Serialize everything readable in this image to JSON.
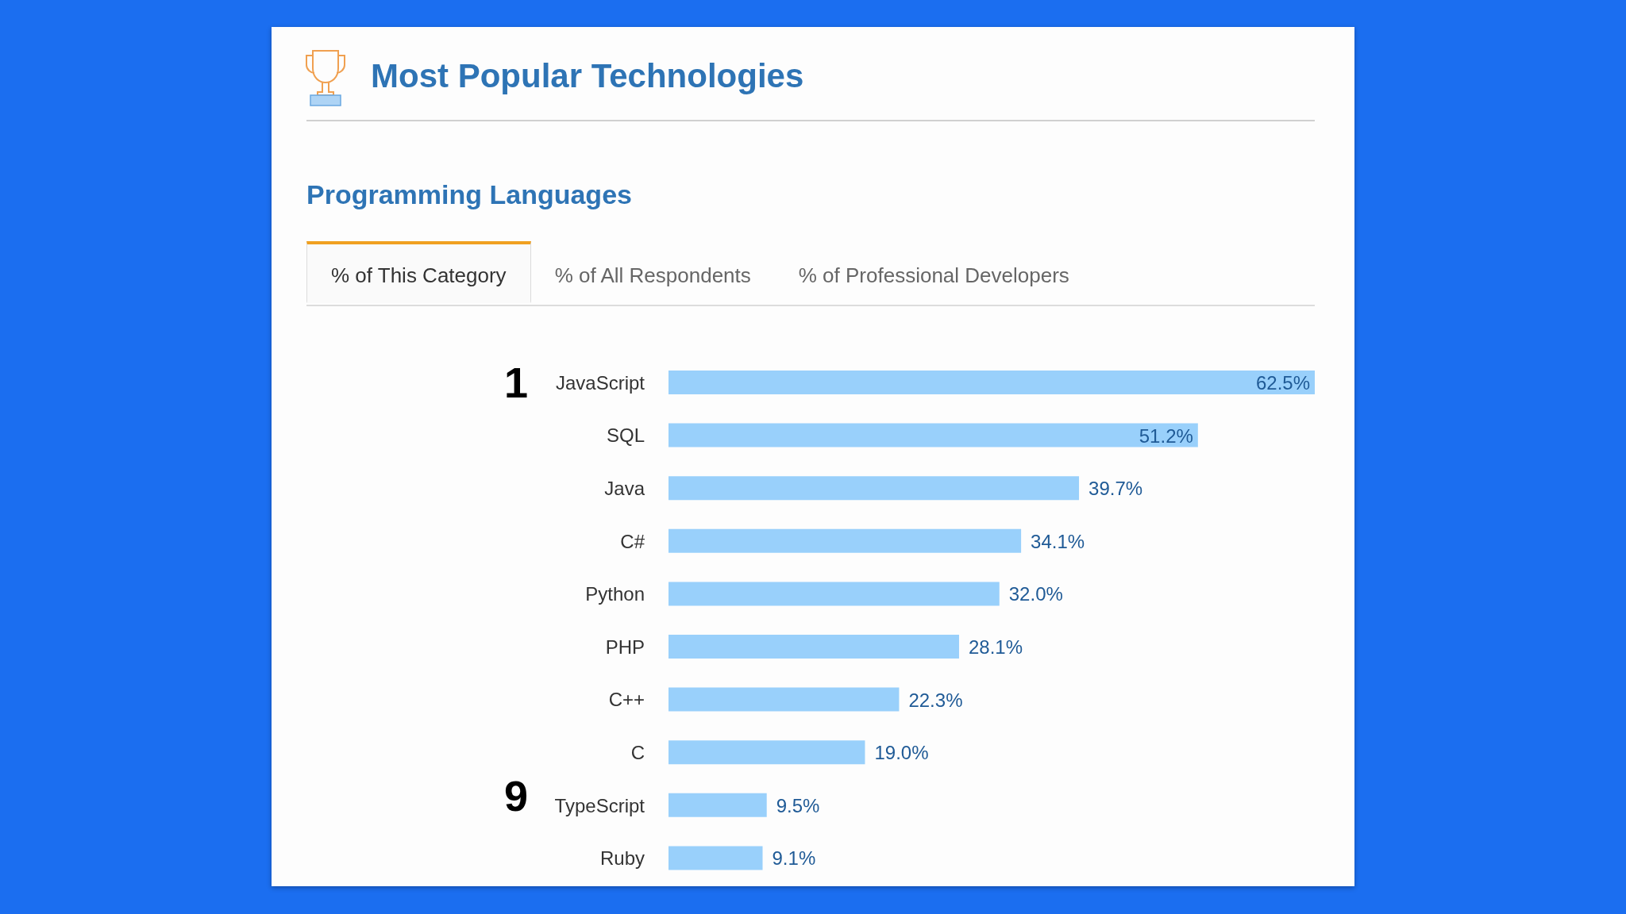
{
  "chart_data": {
    "type": "bar",
    "orientation": "horizontal",
    "title": "Most Popular Technologies",
    "subtitle": "Programming Languages",
    "categories": [
      "JavaScript",
      "SQL",
      "Java",
      "C#",
      "Python",
      "PHP",
      "C++",
      "C",
      "TypeScript",
      "Ruby"
    ],
    "values": [
      62.5,
      51.2,
      39.7,
      34.1,
      32.0,
      28.1,
      22.3,
      19.0,
      9.5,
      9.1
    ],
    "value_labels": [
      "62.5%",
      "51.2%",
      "39.7%",
      "34.1%",
      "32.0%",
      "28.1%",
      "22.3%",
      "19.0%",
      "9.5%",
      "9.1%"
    ],
    "color": "#99d0fb",
    "annotations": [
      "% of This Category",
      "% of All Respondents",
      "% of Professional Developers",
      "1",
      "9"
    ]
  }
}
